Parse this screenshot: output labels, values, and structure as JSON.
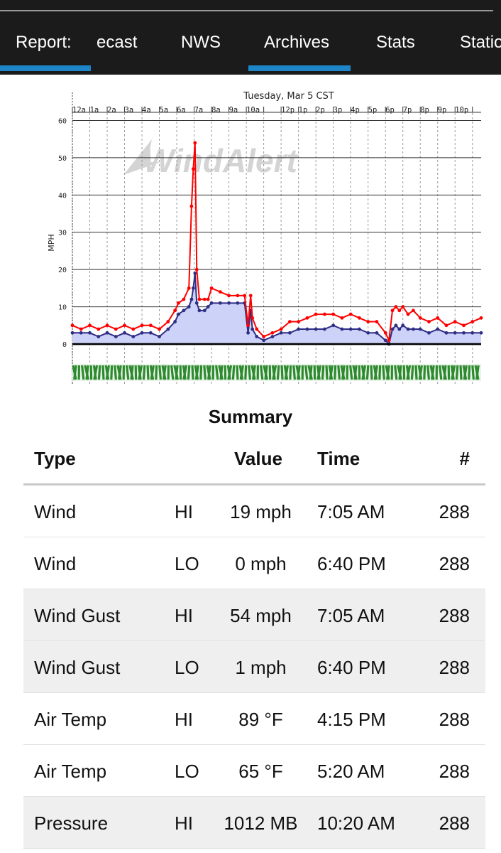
{
  "nav": {
    "tabs": [
      {
        "label": "Report:",
        "active": true
      },
      {
        "label": "ecast",
        "active": false
      },
      {
        "label": "NWS",
        "active": false
      },
      {
        "label": "Archives",
        "active": true
      },
      {
        "label": "Stats",
        "active": false
      },
      {
        "label": "Statio",
        "active": false
      }
    ]
  },
  "chart_data": {
    "type": "line",
    "title": "Tuesday, Mar 5 CST",
    "ylabel": "MPH",
    "watermark": "WindAlert",
    "x_ticks": [
      "12a",
      "1a",
      "2a",
      "3a",
      "4a",
      "5a",
      "6a",
      "7a",
      "8a",
      "9a",
      "10a",
      "",
      "12p",
      "1p",
      "2p",
      "3p",
      "4p",
      "5p",
      "6p",
      "7p",
      "8p",
      "9p",
      "10p",
      ""
    ],
    "y_ticks": [
      0,
      10,
      20,
      30,
      40,
      50,
      60
    ],
    "ylim": [
      0,
      62
    ],
    "xlim": [
      0,
      23.5
    ],
    "grid": true,
    "colors": {
      "gust": "#ff0000",
      "wind": "#2e2e85",
      "fill": "#cdd2f8",
      "direction": "#2e8a2e"
    },
    "series": [
      {
        "role": "gust",
        "x": [
          0,
          0.5,
          1,
          1.5,
          2,
          2.5,
          3,
          3.5,
          4,
          4.5,
          5,
          5.5,
          5.9,
          6.1,
          6.4,
          6.7,
          6.85,
          6.95,
          7.05,
          7.15,
          7.3,
          7.6,
          7.8,
          8,
          8.5,
          9,
          9.5,
          9.9,
          10.1,
          10.25,
          10.35,
          10.6,
          11,
          11.5,
          12,
          12.5,
          13,
          13.5,
          14,
          14.5,
          15,
          15.5,
          16,
          16.5,
          17,
          17.5,
          18,
          18.2,
          18.4,
          18.6,
          18.8,
          19,
          19.3,
          19.6,
          20,
          20.5,
          21,
          21.5,
          22,
          22.5,
          23,
          23.5
        ],
        "y": [
          5,
          4,
          5,
          4,
          5,
          4,
          5,
          4,
          5,
          5,
          4,
          6,
          9,
          11,
          12,
          15,
          37,
          47,
          54,
          20,
          12,
          12,
          12,
          15,
          14,
          13,
          13,
          13,
          5,
          13,
          7,
          4,
          2,
          3,
          4,
          6,
          6,
          7,
          8,
          8,
          8,
          7,
          8,
          7,
          6,
          6,
          3,
          1,
          9,
          10,
          9,
          10,
          8,
          9,
          7,
          6,
          7,
          5,
          6,
          5,
          6,
          7
        ]
      },
      {
        "role": "wind",
        "x": [
          0,
          0.5,
          1,
          1.5,
          2,
          2.5,
          3,
          3.5,
          4,
          4.5,
          5,
          5.5,
          5.9,
          6.1,
          6.4,
          6.7,
          6.85,
          6.95,
          7.05,
          7.15,
          7.3,
          7.6,
          7.8,
          8,
          8.5,
          9,
          9.5,
          9.9,
          10.1,
          10.25,
          10.35,
          10.6,
          11,
          11.5,
          12,
          12.5,
          13,
          13.5,
          14,
          14.5,
          15,
          15.5,
          16,
          16.5,
          17,
          17.5,
          18,
          18.2,
          18.4,
          18.6,
          18.8,
          19,
          19.3,
          19.6,
          20,
          20.5,
          21,
          21.5,
          22,
          22.5,
          23,
          23.5
        ],
        "y": [
          3,
          3,
          3,
          2,
          3,
          2,
          3,
          2,
          3,
          3,
          2,
          4,
          6,
          8,
          9,
          10,
          12,
          15,
          19,
          11,
          9,
          9,
          10,
          11,
          11,
          11,
          11,
          11,
          3,
          9,
          4,
          2,
          1,
          2,
          3,
          3,
          4,
          4,
          4,
          4,
          5,
          4,
          4,
          4,
          3,
          3,
          1,
          0,
          4,
          5,
          4,
          5,
          4,
          4,
          4,
          3,
          4,
          3,
          3,
          3,
          3,
          3
        ]
      }
    ]
  },
  "summary": {
    "title": "Summary",
    "headers": {
      "type": "Type",
      "value": "Value",
      "time": "Time",
      "num": "#"
    },
    "rows": [
      {
        "type": "Wind",
        "hilo": "HI",
        "value": "19 mph",
        "time": "7:05 AM",
        "num": "288"
      },
      {
        "type": "Wind",
        "hilo": "LO",
        "value": "0 mph",
        "time": "6:40 PM",
        "num": "288"
      },
      {
        "type": "Wind Gust",
        "hilo": "HI",
        "value": "54 mph",
        "time": "7:05 AM",
        "num": "288"
      },
      {
        "type": "Wind Gust",
        "hilo": "LO",
        "value": "1 mph",
        "time": "6:40 PM",
        "num": "288"
      },
      {
        "type": "Air Temp",
        "hilo": "HI",
        "value": "89 °F",
        "time": "4:15 PM",
        "num": "288"
      },
      {
        "type": "Air Temp",
        "hilo": "LO",
        "value": "65 °F",
        "time": "5:20 AM",
        "num": "288"
      },
      {
        "type": "Pressure",
        "hilo": "HI",
        "value": "1012 MB",
        "time": "10:20 AM",
        "num": "288"
      }
    ]
  }
}
